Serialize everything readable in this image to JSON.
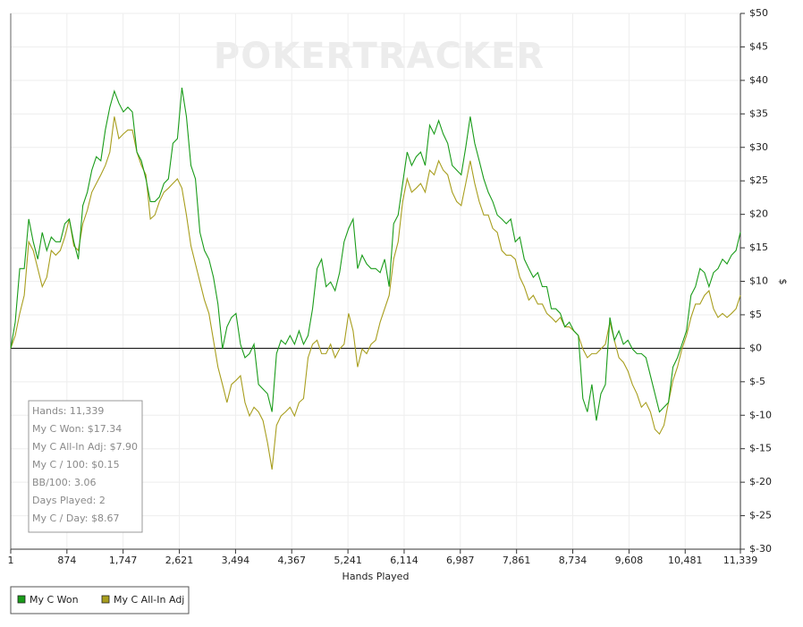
{
  "chart_data": {
    "type": "line",
    "watermark": "POKERTRACKER",
    "x_label": "Hands Played",
    "y_label": "$",
    "xlim": [
      1,
      11339
    ],
    "ylim": [
      -30,
      50
    ],
    "grid": true,
    "legend": "bottom-left",
    "xticks": [
      1,
      874,
      {
        "value": 1747,
        "label": "1,747"
      },
      {
        "value": 2621,
        "label": "2,621"
      },
      {
        "value": 3494,
        "label": "3,494"
      },
      {
        "value": 4367,
        "label": "4,367"
      },
      {
        "value": 5241,
        "label": "5,241"
      },
      {
        "value": 6114,
        "label": "6,114"
      },
      {
        "value": 6987,
        "label": "6,987"
      },
      {
        "value": 7861,
        "label": "7,861"
      },
      {
        "value": 8734,
        "label": "8,734"
      },
      {
        "value": 9608,
        "label": "9,608"
      },
      {
        "value": 10481,
        "label": "10,481"
      },
      {
        "value": 11339,
        "label": "11,339"
      }
    ],
    "yticks": [
      {
        "value": 50,
        "label": "$50"
      },
      {
        "value": 45,
        "label": "$45"
      },
      {
        "value": 40,
        "label": "$40"
      },
      {
        "value": 35,
        "label": "$35"
      },
      {
        "value": 30,
        "label": "$30"
      },
      {
        "value": 25,
        "label": "$25"
      },
      {
        "value": 20,
        "label": "$20"
      },
      {
        "value": 15,
        "label": "$15"
      },
      {
        "value": 10,
        "label": "$10"
      },
      {
        "value": 5,
        "label": "$5"
      },
      {
        "value": 0,
        "label": "$0"
      },
      {
        "value": -5,
        "label": "$-5"
      },
      {
        "value": -10,
        "label": "$-10"
      },
      {
        "value": -15,
        "label": "$-15"
      },
      {
        "value": -20,
        "label": "$-20"
      },
      {
        "value": -25,
        "label": "$-25"
      },
      {
        "value": -30,
        "label": "$-30"
      }
    ],
    "stats": [
      "Hands: 11,339",
      "My C Won: $17.34",
      "My C All-In Adj: $7.90",
      "My C / 100: $0.15",
      "BB/100: 3.06",
      "Days Played: 2",
      "My C / Day: $8.67"
    ],
    "x": [
      1,
      71,
      141,
      211,
      281,
      351,
      421,
      491,
      561,
      631,
      701,
      771,
      841,
      911,
      981,
      1051,
      1121,
      1191,
      1261,
      1331,
      1401,
      1471,
      1541,
      1611,
      1681,
      1751,
      1821,
      1891,
      1961,
      2031,
      2101,
      2171,
      2241,
      2311,
      2381,
      2451,
      2521,
      2591,
      2661,
      2731,
      2801,
      2871,
      2941,
      3011,
      3081,
      3151,
      3221,
      3291,
      3361,
      3431,
      3501,
      3571,
      3641,
      3711,
      3781,
      3851,
      3921,
      3991,
      4061,
      4131,
      4201,
      4271,
      4341,
      4411,
      4481,
      4551,
      4621,
      4691,
      4761,
      4831,
      4901,
      4971,
      5041,
      5111,
      5181,
      5251,
      5321,
      5391,
      5461,
      5531,
      5601,
      5671,
      5741,
      5811,
      5881,
      5951,
      6021,
      6091,
      6161,
      6231,
      6301,
      6371,
      6441,
      6511,
      6581,
      6651,
      6721,
      6791,
      6861,
      6931,
      7001,
      7071,
      7141,
      7211,
      7281,
      7351,
      7421,
      7491,
      7561,
      7631,
      7701,
      7771,
      7841,
      7911,
      7981,
      8051,
      8121,
      8191,
      8261,
      8331,
      8401,
      8471,
      8541,
      8611,
      8681,
      8751,
      8821,
      8891,
      8961,
      9031,
      9101,
      9171,
      9241,
      9311,
      9381,
      9451,
      9521,
      9591,
      9661,
      9731,
      9801,
      9871,
      9941,
      10011,
      10081,
      10151,
      10221,
      10291,
      10361,
      10431,
      10501,
      10571,
      10641,
      10711,
      10781,
      10851,
      10921,
      10991,
      11061,
      11131,
      11201,
      11271,
      11339
    ],
    "series": [
      {
        "name": "My C Won",
        "color": "#1a9c1a",
        "values": [
          0,
          3.9,
          11.9,
          11.9,
          19.3,
          15.9,
          13.3,
          17.3,
          14.6,
          16.6,
          15.9,
          15.9,
          18.6,
          19.3,
          15.9,
          13.3,
          21.3,
          23.3,
          26.6,
          28.6,
          28.0,
          32.6,
          36.0,
          38.4,
          36.6,
          35.3,
          36.0,
          35.3,
          29.3,
          28.0,
          25.3,
          21.9,
          21.9,
          22.6,
          24.6,
          25.3,
          30.6,
          31.3,
          38.9,
          34.6,
          27.3,
          25.3,
          17.3,
          14.6,
          13.3,
          10.6,
          6.6,
          -0.1,
          3.2,
          4.6,
          5.2,
          0.6,
          -1.4,
          -0.8,
          0.6,
          -5.4,
          -6.1,
          -6.8,
          -9.5,
          -0.8,
          1.2,
          0.6,
          1.9,
          0.6,
          2.6,
          0.6,
          1.9,
          5.9,
          11.9,
          13.3,
          9.2,
          9.9,
          8.6,
          11.3,
          15.9,
          17.9,
          19.3,
          11.9,
          13.9,
          12.6,
          11.9,
          11.9,
          11.3,
          13.3,
          9.2,
          18.6,
          19.9,
          24.6,
          29.3,
          27.3,
          28.6,
          29.3,
          27.3,
          33.3,
          32.0,
          34.0,
          32.0,
          30.6,
          27.3,
          26.6,
          25.9,
          30.0,
          34.6,
          30.6,
          28.0,
          25.3,
          23.3,
          21.9,
          19.9,
          19.3,
          18.6,
          19.3,
          15.9,
          16.6,
          13.3,
          11.9,
          10.6,
          11.3,
          9.2,
          9.2,
          5.9,
          5.9,
          5.2,
          3.2,
          3.9,
          2.6,
          1.9,
          -7.5,
          -9.5,
          -5.4,
          -10.8,
          -6.8,
          -5.4,
          4.6,
          1.2,
          2.6,
          0.6,
          1.2,
          -0.1,
          -0.8,
          -0.8,
          -1.4,
          -4.1,
          -6.8,
          -9.5,
          -8.8,
          -8.1,
          -2.8,
          -1.4,
          0.6,
          2.6,
          7.9,
          9.2,
          11.9,
          11.3,
          9.2,
          11.3,
          11.9,
          13.3,
          12.6,
          13.9,
          14.6,
          17.34
        ]
      },
      {
        "name": "My C All-In Adj",
        "color": "#a89e1e",
        "values": [
          0,
          1.9,
          5.2,
          7.9,
          15.9,
          14.6,
          11.9,
          9.2,
          10.6,
          14.6,
          13.9,
          14.6,
          16.6,
          19.3,
          15.3,
          14.6,
          18.6,
          20.6,
          23.3,
          24.6,
          25.9,
          27.3,
          29.3,
          34.6,
          31.3,
          32.0,
          32.6,
          32.6,
          29.3,
          27.3,
          25.9,
          19.3,
          19.9,
          21.9,
          23.3,
          23.9,
          24.6,
          25.3,
          23.9,
          19.9,
          15.3,
          12.6,
          9.9,
          7.2,
          5.2,
          1.2,
          -2.8,
          -5.4,
          -8.1,
          -5.4,
          -4.8,
          -4.1,
          -8.1,
          -10.1,
          -8.8,
          -9.5,
          -10.8,
          -14.1,
          -18.1,
          -11.5,
          -10.1,
          -9.5,
          -8.8,
          -10.1,
          -8.1,
          -7.5,
          -1.4,
          0.6,
          1.2,
          -0.8,
          -0.8,
          0.6,
          -1.4,
          -0.1,
          0.6,
          5.2,
          2.6,
          -2.8,
          -0.1,
          -0.8,
          0.6,
          1.2,
          3.9,
          5.9,
          7.9,
          13.3,
          15.9,
          21.9,
          25.3,
          23.3,
          23.9,
          24.6,
          23.3,
          26.6,
          25.9,
          28.0,
          26.6,
          25.9,
          23.3,
          21.9,
          21.3,
          24.6,
          28.0,
          24.6,
          21.9,
          19.9,
          19.9,
          17.9,
          17.3,
          14.6,
          13.9,
          13.9,
          13.3,
          10.6,
          9.2,
          7.2,
          7.9,
          6.6,
          6.6,
          5.2,
          4.6,
          3.9,
          4.6,
          3.2,
          3.2,
          2.6,
          1.9,
          -0.1,
          -1.4,
          -0.8,
          -0.8,
          -0.1,
          0.6,
          3.9,
          1.2,
          -1.4,
          -2.1,
          -3.4,
          -5.4,
          -6.8,
          -8.8,
          -8.1,
          -9.5,
          -12.1,
          -12.8,
          -11.5,
          -8.1,
          -4.8,
          -2.8,
          -0.1,
          1.9,
          4.6,
          6.6,
          6.6,
          7.9,
          8.6,
          5.9,
          4.6,
          5.2,
          4.6,
          5.2,
          5.9,
          7.9
        ]
      }
    ]
  }
}
